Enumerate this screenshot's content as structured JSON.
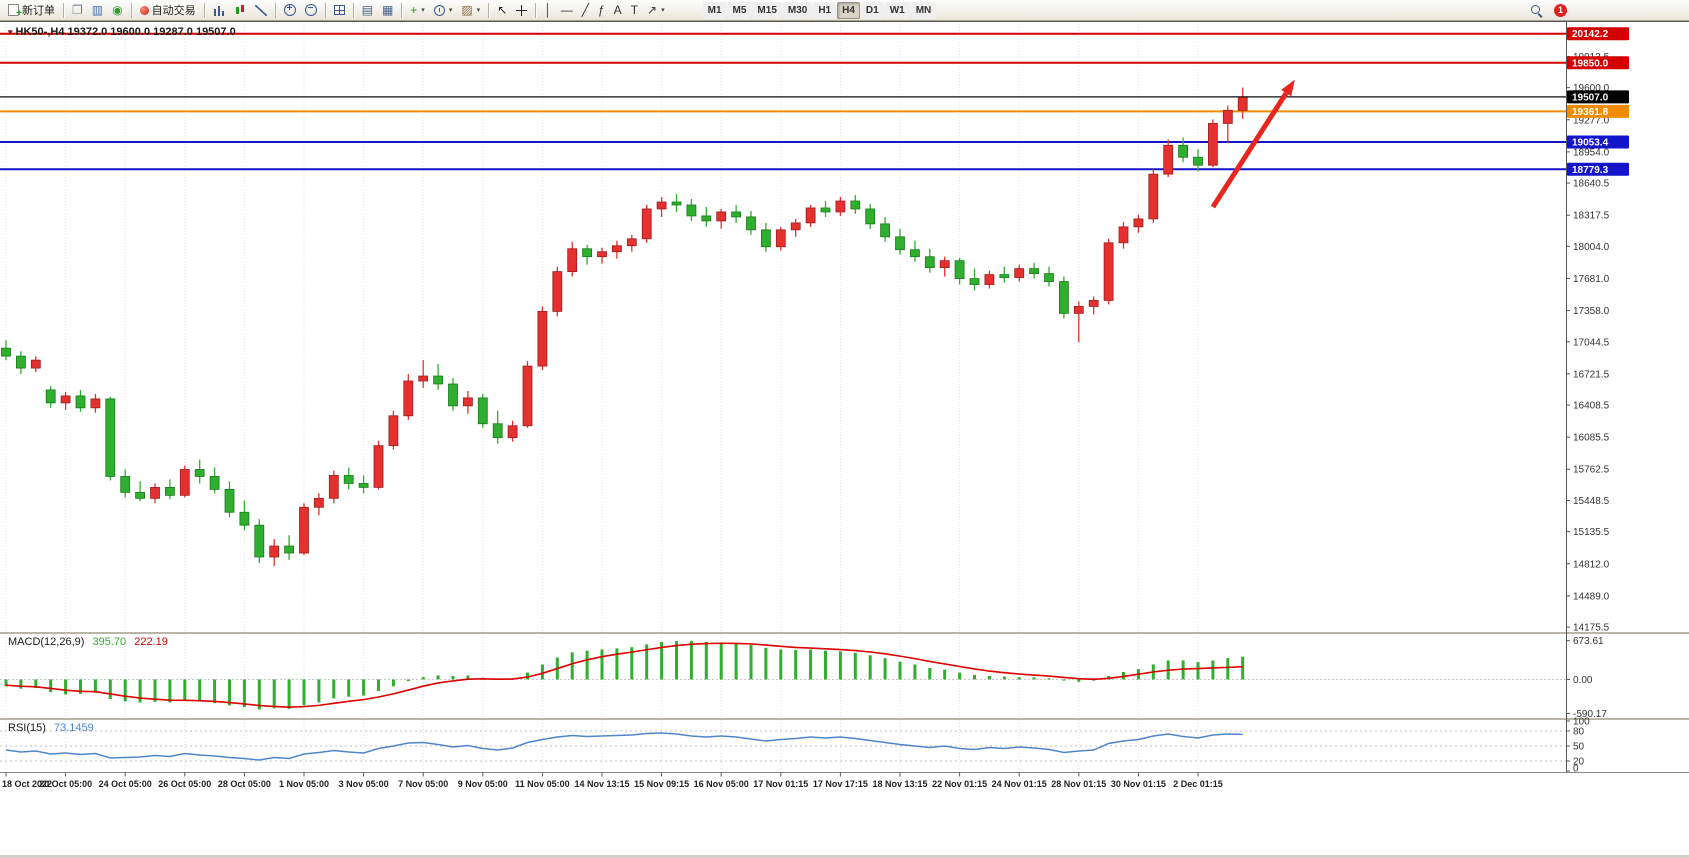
{
  "toolbar": {
    "notification_count": "1",
    "timeframes": [
      "M1",
      "M5",
      "M15",
      "M30",
      "H1",
      "H4",
      "D1",
      "W1",
      "MN"
    ],
    "active_timeframe": "H4",
    "groups": [
      {
        "items": [
          {
            "name": "new-order",
            "css": "ic-doc",
            "label": "新订单"
          }
        ]
      },
      {
        "items": [
          {
            "name": "chart-window",
            "glyph": "❐",
            "color": "#6b7f98"
          },
          {
            "name": "profiles",
            "glyph": "▥",
            "color": "#3c6eb4"
          },
          {
            "name": "alerts",
            "glyph": "◉",
            "color": "#2e9e2e"
          }
        ]
      },
      {
        "items": [
          {
            "name": "auto-trade",
            "css": "ic-dot-red",
            "label": "自动交易"
          }
        ]
      },
      {
        "items": [
          {
            "name": "bar-chart",
            "css": "ic-bar-chart"
          },
          {
            "name": "candlestick-chart",
            "css": "ic-candle-chart"
          },
          {
            "name": "line-chart",
            "css": "ic-line-chart"
          }
        ]
      },
      {
        "items": [
          {
            "name": "zoom-in",
            "css": "ic-zoom-in"
          },
          {
            "name": "zoom-out",
            "css": "ic-zoom-out"
          }
        ]
      },
      {
        "items": [
          {
            "name": "tile-windows",
            "css": "ic-tile"
          }
        ]
      },
      {
        "items": [
          {
            "name": "data-window",
            "glyph": "▤",
            "color": "#44608a"
          },
          {
            "name": "navigator",
            "glyph": "▦",
            "color": "#44608a"
          }
        ]
      },
      {
        "items": [
          {
            "name": "add-indicator",
            "glyph": "+",
            "color": "#1c9e1c",
            "dropdown": true
          },
          {
            "name": "periods",
            "css": "ic-clock",
            "dropdown": true
          },
          {
            "name": "templates",
            "glyph": "▨",
            "color": "#8a6d3b",
            "dropdown": true
          }
        ]
      },
      {
        "items": [
          {
            "name": "cursor",
            "glyph": "↖",
            "color": "#222"
          },
          {
            "name": "crosshair",
            "css": "ic-crosshair"
          }
        ]
      },
      {
        "items": [
          {
            "name": "vertical-line",
            "glyph": "│",
            "color": "#333"
          },
          {
            "name": "horizontal-line",
            "glyph": "—",
            "color": "#333"
          },
          {
            "name": "trendline",
            "glyph": "╱",
            "color": "#333"
          },
          {
            "name": "fibonacci",
            "glyph": "ƒ",
            "color": "#333"
          },
          {
            "name": "text",
            "glyph": "A",
            "color": "#333"
          },
          {
            "name": "text-label",
            "glyph": "T",
            "color": "#333"
          },
          {
            "name": "arrows",
            "glyph": "↗",
            "color": "#333",
            "dropdown": true
          }
        ]
      }
    ]
  },
  "chart": {
    "symbol": "HK50-",
    "period": "H4",
    "title": "HK50-,H4  19372.0 19600.0 19287.0 19507.0"
  },
  "chart_data": {
    "type": "candlestick",
    "symbol": "HK50-",
    "timeframe": "H4",
    "ohlc_display": {
      "open": "19372.0",
      "high": "19600.0",
      "low": "19287.0",
      "close": "19507.0"
    },
    "up_color": "#e53030",
    "down_color": "#2fae2f",
    "price_axis": {
      "max": 20240,
      "min": 14156,
      "gridline_labels": [
        {
          "price": 19913.5,
          "label": "19913.5"
        },
        {
          "price": 19600.0,
          "label": "19600.0"
        },
        {
          "price": 19277.0,
          "label": "19277.0"
        },
        {
          "price": 18954.0,
          "label": "18954.0"
        },
        {
          "price": 18640.5,
          "label": "18640.5"
        },
        {
          "price": 18317.5,
          "label": "18317.5"
        },
        {
          "price": 18004.0,
          "label": "18004.0"
        },
        {
          "price": 17681.0,
          "label": "17681.0"
        },
        {
          "price": 17358.0,
          "label": "17358.0"
        },
        {
          "price": 17044.5,
          "label": "17044.5"
        },
        {
          "price": 16721.5,
          "label": "16721.5"
        },
        {
          "price": 16408.5,
          "label": "16408.5"
        },
        {
          "price": 16085.5,
          "label": "16085.5"
        },
        {
          "price": 15762.5,
          "label": "15762.5"
        },
        {
          "price": 15448.5,
          "label": "15448.5"
        },
        {
          "price": 15135.5,
          "label": "15135.5"
        },
        {
          "price": 14812.0,
          "label": "14812.0"
        },
        {
          "price": 14489.0,
          "label": "14489.0"
        },
        {
          "price": 14175.5,
          "label": "14175.5"
        }
      ]
    },
    "level_lines": [
      {
        "price": 20142.2,
        "label": "20142.2",
        "color": "#d40000",
        "width": 2
      },
      {
        "price": 19850.0,
        "label": "19850.0",
        "color": "#d40000",
        "width": 2
      },
      {
        "price": 19507.0,
        "label": "19507.0",
        "color": "#000000",
        "width": 1,
        "type": "current"
      },
      {
        "price": 19361.8,
        "label": "19361.8",
        "color": "#f08c00",
        "width": 2
      },
      {
        "price": 19053.4,
        "label": "19053.4",
        "color": "#1414c8",
        "width": 2
      },
      {
        "price": 18779.3,
        "label": "18779.3",
        "color": "#1414c8",
        "width": 2
      }
    ],
    "candles": [
      [
        16980,
        17060,
        16860,
        16900
      ],
      [
        16900,
        16950,
        16720,
        16780
      ],
      [
        16780,
        16900,
        16740,
        16860
      ],
      [
        16560,
        16600,
        16380,
        16430
      ],
      [
        16430,
        16540,
        16360,
        16500
      ],
      [
        16500,
        16560,
        16340,
        16380
      ],
      [
        16380,
        16520,
        16330,
        16470
      ],
      [
        16470,
        16490,
        15650,
        15690
      ],
      [
        15690,
        15760,
        15480,
        15530
      ],
      [
        15530,
        15640,
        15440,
        15470
      ],
      [
        15470,
        15620,
        15420,
        15580
      ],
      [
        15580,
        15660,
        15460,
        15500
      ],
      [
        15500,
        15800,
        15480,
        15760
      ],
      [
        15760,
        15860,
        15620,
        15690
      ],
      [
        15690,
        15780,
        15520,
        15560
      ],
      [
        15560,
        15640,
        15280,
        15330
      ],
      [
        15330,
        15450,
        15150,
        15200
      ],
      [
        15200,
        15260,
        14820,
        14880
      ],
      [
        14880,
        15060,
        14790,
        14990
      ],
      [
        14990,
        15100,
        14850,
        14920
      ],
      [
        14920,
        15420,
        14900,
        15380
      ],
      [
        15380,
        15520,
        15300,
        15470
      ],
      [
        15470,
        15750,
        15420,
        15700
      ],
      [
        15700,
        15780,
        15560,
        15620
      ],
      [
        15620,
        15700,
        15520,
        15580
      ],
      [
        15580,
        16050,
        15560,
        16000
      ],
      [
        16000,
        16350,
        15960,
        16300
      ],
      [
        16300,
        16720,
        16260,
        16650
      ],
      [
        16650,
        16860,
        16580,
        16700
      ],
      [
        16700,
        16820,
        16560,
        16620
      ],
      [
        16620,
        16680,
        16350,
        16400
      ],
      [
        16400,
        16550,
        16320,
        16480
      ],
      [
        16480,
        16520,
        16180,
        16220
      ],
      [
        16220,
        16350,
        16020,
        16080
      ],
      [
        16080,
        16250,
        16040,
        16200
      ],
      [
        16200,
        16850,
        16180,
        16800
      ],
      [
        16800,
        17400,
        16760,
        17350
      ],
      [
        17350,
        17800,
        17300,
        17750
      ],
      [
        17750,
        18050,
        17700,
        17980
      ],
      [
        17980,
        18020,
        17820,
        17900
      ],
      [
        17900,
        17990,
        17830,
        17950
      ],
      [
        17950,
        18060,
        17880,
        18010
      ],
      [
        18010,
        18120,
        17950,
        18080
      ],
      [
        18080,
        18420,
        18040,
        18380
      ],
      [
        18380,
        18500,
        18300,
        18450
      ],
      [
        18450,
        18530,
        18350,
        18420
      ],
      [
        18420,
        18480,
        18260,
        18310
      ],
      [
        18310,
        18400,
        18200,
        18260
      ],
      [
        18260,
        18380,
        18180,
        18350
      ],
      [
        18350,
        18420,
        18240,
        18300
      ],
      [
        18300,
        18360,
        18120,
        18170
      ],
      [
        18170,
        18240,
        17950,
        18000
      ],
      [
        18000,
        18200,
        17960,
        18170
      ],
      [
        18170,
        18280,
        18100,
        18240
      ],
      [
        18240,
        18420,
        18200,
        18390
      ],
      [
        18390,
        18460,
        18300,
        18350
      ],
      [
        18350,
        18500,
        18310,
        18460
      ],
      [
        18460,
        18520,
        18330,
        18380
      ],
      [
        18380,
        18430,
        18180,
        18230
      ],
      [
        18230,
        18300,
        18050,
        18100
      ],
      [
        18100,
        18180,
        17920,
        17970
      ],
      [
        17970,
        18060,
        17850,
        17900
      ],
      [
        17900,
        17980,
        17740,
        17790
      ],
      [
        17790,
        17900,
        17700,
        17860
      ],
      [
        17860,
        17890,
        17620,
        17680
      ],
      [
        17680,
        17780,
        17560,
        17620
      ],
      [
        17620,
        17760,
        17580,
        17720
      ],
      [
        17720,
        17800,
        17640,
        17690
      ],
      [
        17690,
        17820,
        17650,
        17780
      ],
      [
        17780,
        17840,
        17680,
        17730
      ],
      [
        17730,
        17800,
        17600,
        17650
      ],
      [
        17650,
        17700,
        17280,
        17330
      ],
      [
        17330,
        17450,
        17040,
        17400
      ],
      [
        17400,
        17500,
        17320,
        17460
      ],
      [
        17460,
        18080,
        17420,
        18040
      ],
      [
        18040,
        18250,
        17980,
        18200
      ],
      [
        18200,
        18320,
        18140,
        18280
      ],
      [
        18280,
        18780,
        18240,
        18730
      ],
      [
        18730,
        19080,
        18700,
        19020
      ],
      [
        19020,
        19100,
        18850,
        18900
      ],
      [
        18900,
        18980,
        18760,
        18820
      ],
      [
        18820,
        19280,
        18800,
        19240
      ],
      [
        19240,
        19420,
        19040,
        19372
      ],
      [
        19372,
        19600,
        19287,
        19507
      ]
    ],
    "time_labels": [
      {
        "index": 0,
        "label": "18 Oct 2022"
      },
      {
        "index": 4,
        "label": "20 Oct 05:00"
      },
      {
        "index": 8,
        "label": "24 Oct 05:00"
      },
      {
        "index": 12,
        "label": "26 Oct 05:00"
      },
      {
        "index": 16,
        "label": "28 Oct 05:00"
      },
      {
        "index": 20,
        "label": "1 Nov 05:00"
      },
      {
        "index": 24,
        "label": "3 Nov 05:00"
      },
      {
        "index": 28,
        "label": "7 Nov 05:00"
      },
      {
        "index": 32,
        "label": "9 Nov 05:00"
      },
      {
        "index": 36,
        "label": "11 Nov 05:00"
      },
      {
        "index": 40,
        "label": "14 Nov 13:15"
      },
      {
        "index": 44,
        "label": "15 Nov 09:15"
      },
      {
        "index": 48,
        "label": "16 Nov 05:00"
      },
      {
        "index": 52,
        "label": "17 Nov 01:15"
      },
      {
        "index": 56,
        "label": "17 Nov 17:15"
      },
      {
        "index": 60,
        "label": "18 Nov 13:15"
      },
      {
        "index": 64,
        "label": "22 Nov 01:15"
      },
      {
        "index": 68,
        "label": "24 Nov 01:15"
      },
      {
        "index": 72,
        "label": "28 Nov 01:15"
      },
      {
        "index": 76,
        "label": "30 Nov 01:15"
      },
      {
        "index": 80,
        "label": "2 Dec 01:15"
      }
    ],
    "annotation_arrow": {
      "from_index": 81,
      "from_price": 18400,
      "to_index": 86.5,
      "to_price": 19680,
      "color": "#e8251f"
    },
    "macd": {
      "label": "MACD(12,26,9)",
      "main_value": "395.70",
      "signal_value": "222.19",
      "histogram_color": "#2fae2f",
      "signal_color": "#dd0000",
      "axis": [
        {
          "value": 673.61,
          "label": "673.61"
        },
        {
          "value": 0,
          "label": "0.00"
        },
        {
          "value": -590.17,
          "label": "-590.17"
        }
      ],
      "histogram": [
        -120,
        -160,
        -150,
        -220,
        -260,
        -250,
        -230,
        -340,
        -380,
        -400,
        -390,
        -400,
        -370,
        -380,
        -410,
        -450,
        -480,
        -520,
        -500,
        -510,
        -450,
        -400,
        -330,
        -300,
        -280,
        -200,
        -120,
        -30,
        40,
        70,
        60,
        70,
        30,
        -10,
        10,
        120,
        260,
        380,
        470,
        500,
        520,
        540,
        560,
        610,
        650,
        665,
        670,
        650,
        640,
        620,
        600,
        550,
        520,
        510,
        520,
        500,
        490,
        460,
        420,
        370,
        310,
        260,
        200,
        170,
        120,
        80,
        60,
        50,
        40,
        35,
        20,
        -20,
        -40,
        -20,
        60,
        130,
        180,
        260,
        330,
        330,
        300,
        330,
        370,
        395.7
      ],
      "signal": [
        -100,
        -118,
        -128,
        -156,
        -187,
        -206,
        -213,
        -251,
        -290,
        -323,
        -343,
        -360,
        -363,
        -368,
        -381,
        -402,
        -425,
        -454,
        -468,
        -481,
        -472,
        -450,
        -414,
        -380,
        -350,
        -305,
        -250,
        -184,
        -117,
        -61,
        -25,
        4,
        12,
        5,
        7,
        41,
        107,
        189,
        273,
        341,
        395,
        439,
        475,
        516,
        556,
        589,
        613,
        624,
        629,
        626,
        618,
        598,
        575,
        556,
        545,
        532,
        519,
        501,
        477,
        445,
        405,
        362,
        313,
        270,
        225,
        182,
        145,
        117,
        94,
        76,
        59,
        35,
        13,
        3,
        20,
        53,
        91,
        130,
        160,
        180,
        190,
        200,
        210,
        222.19
      ]
    },
    "rsi": {
      "label": "RSI(15)",
      "value": "73.1459",
      "color": "#4f86c9",
      "levels": [
        80,
        50,
        20
      ],
      "axis": [
        {
          "value": 100,
          "label": "100"
        },
        {
          "value": 80,
          "label": "80"
        },
        {
          "value": 50,
          "label": "50"
        },
        {
          "value": 20,
          "label": "20"
        },
        {
          "value": 0,
          "label": "0"
        }
      ],
      "values": [
        42,
        38,
        40,
        34,
        36,
        33,
        35,
        26,
        27,
        28,
        31,
        29,
        35,
        32,
        30,
        27,
        25,
        22,
        27,
        25,
        34,
        37,
        41,
        38,
        36,
        45,
        50,
        56,
        57,
        53,
        48,
        51,
        45,
        42,
        46,
        57,
        63,
        68,
        71,
        69,
        70,
        71,
        72,
        75,
        76,
        74,
        70,
        68,
        70,
        68,
        64,
        60,
        63,
        65,
        68,
        66,
        68,
        65,
        61,
        57,
        53,
        50,
        47,
        50,
        45,
        43,
        47,
        45,
        48,
        46,
        43,
        37,
        40,
        42,
        55,
        60,
        63,
        70,
        74,
        69,
        66,
        72,
        74,
        73.15
      ]
    }
  }
}
